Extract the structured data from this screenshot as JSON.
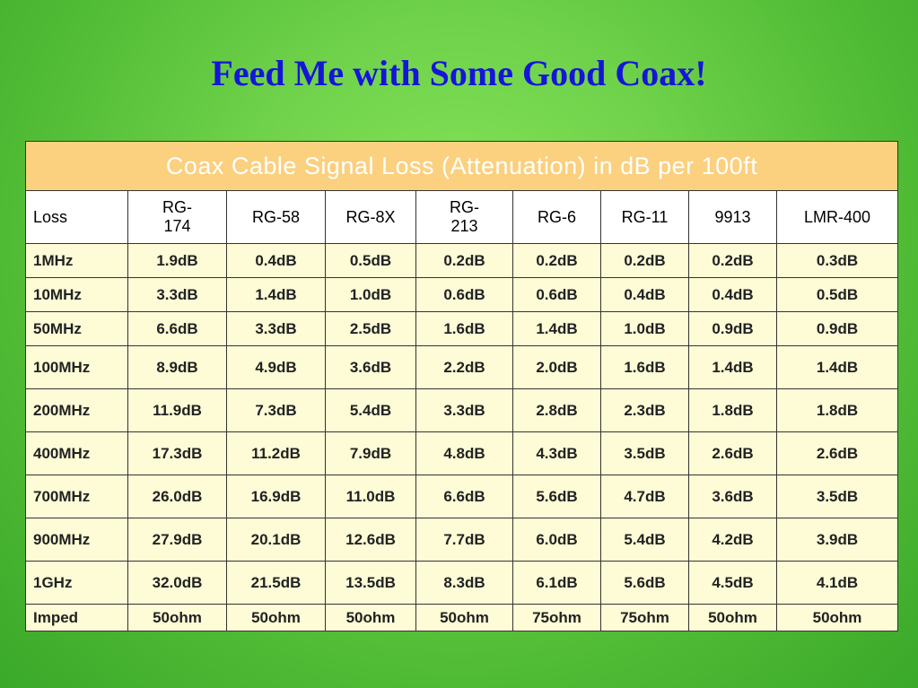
{
  "title": "Feed Me with Some Good Coax!",
  "table": {
    "caption": "Coax Cable Signal Loss (Attenuation) in dB per 100ft",
    "row_label_header": "Loss",
    "columns": [
      {
        "line1": "RG-",
        "line2": "174"
      },
      {
        "line1": "RG-58",
        "line2": ""
      },
      {
        "line1": "RG-8X",
        "line2": ""
      },
      {
        "line1": "RG-",
        "line2": "213"
      },
      {
        "line1": "RG-6",
        "line2": ""
      },
      {
        "line1": "RG-11",
        "line2": ""
      },
      {
        "line1": "9913",
        "line2": ""
      },
      {
        "line1": "LMR-400",
        "line2": ""
      }
    ],
    "rows": [
      {
        "label": "1MHz",
        "cells": [
          "1.9dB",
          "0.4dB",
          "0.5dB",
          "0.2dB",
          "0.2dB",
          "0.2dB",
          "0.2dB",
          "0.3dB"
        ]
      },
      {
        "label": "10MHz",
        "cells": [
          "3.3dB",
          "1.4dB",
          "1.0dB",
          "0.6dB",
          "0.6dB",
          "0.4dB",
          "0.4dB",
          "0.5dB"
        ]
      },
      {
        "label": "50MHz",
        "cells": [
          "6.6dB",
          "3.3dB",
          "2.5dB",
          "1.6dB",
          "1.4dB",
          "1.0dB",
          "0.9dB",
          "0.9dB"
        ]
      },
      {
        "label": "100MHz",
        "cells": [
          "8.9dB",
          "4.9dB",
          "3.6dB",
          "2.2dB",
          "2.0dB",
          "1.6dB",
          "1.4dB",
          "1.4dB"
        ]
      },
      {
        "label": "200MHz",
        "cells": [
          "11.9dB",
          "7.3dB",
          "5.4dB",
          "3.3dB",
          "2.8dB",
          "2.3dB",
          "1.8dB",
          "1.8dB"
        ]
      },
      {
        "label": "400MHz",
        "cells": [
          "17.3dB",
          "11.2dB",
          "7.9dB",
          "4.8dB",
          "4.3dB",
          "3.5dB",
          "2.6dB",
          "2.6dB"
        ]
      },
      {
        "label": "700MHz",
        "cells": [
          "26.0dB",
          "16.9dB",
          "11.0dB",
          "6.6dB",
          "5.6dB",
          "4.7dB",
          "3.6dB",
          "3.5dB"
        ]
      },
      {
        "label": "900MHz",
        "cells": [
          "27.9dB",
          "20.1dB",
          "12.6dB",
          "7.7dB",
          "6.0dB",
          "5.4dB",
          "4.2dB",
          "3.9dB"
        ]
      },
      {
        "label": "1GHz",
        "cells": [
          "32.0dB",
          "21.5dB",
          "13.5dB",
          "8.3dB",
          "6.1dB",
          "5.6dB",
          "4.5dB",
          "4.1dB"
        ]
      },
      {
        "label": "Imped",
        "cells": [
          "50ohm",
          "50ohm",
          "50ohm",
          "50ohm",
          "75ohm",
          "75ohm",
          "50ohm",
          "50ohm"
        ]
      }
    ]
  }
}
